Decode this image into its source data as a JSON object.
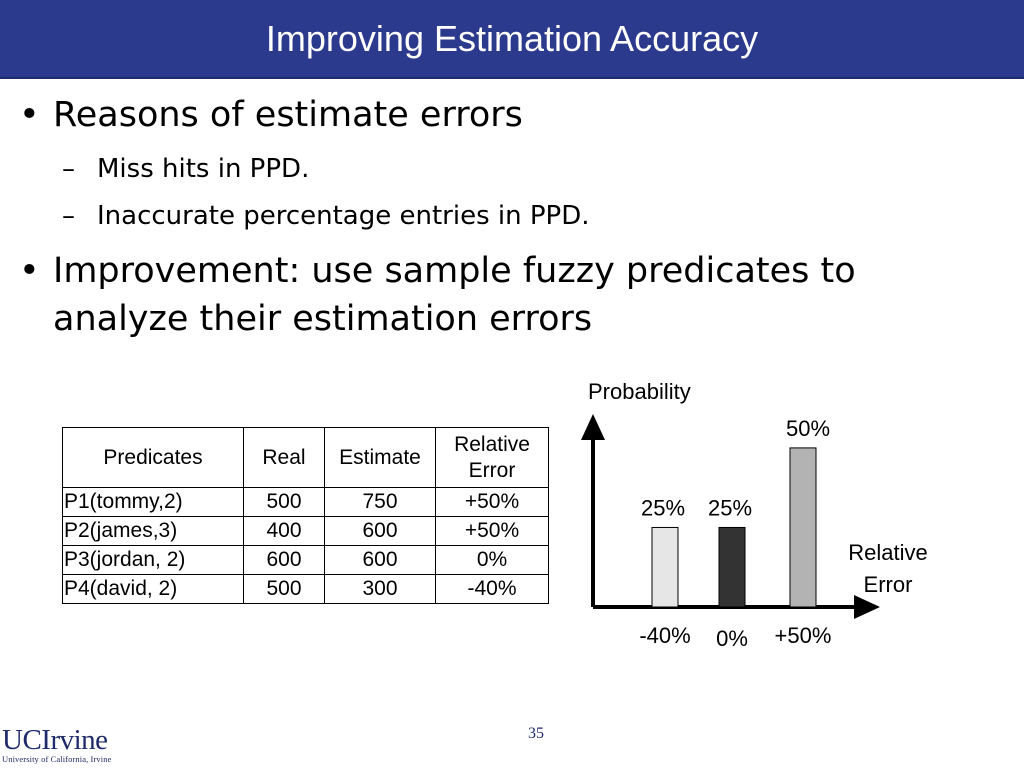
{
  "slide": {
    "title": "Improving Estimation Accuracy",
    "bullets": [
      {
        "text": "Reasons of estimate errors",
        "subs": [
          "Miss hits in PPD.",
          "Inaccurate percentage entries in PPD."
        ]
      },
      {
        "line1": "Improvement: use sample fuzzy predicates to",
        "line2": "analyze their estimation errors"
      }
    ],
    "bullet_glyph": "•",
    "dash_glyph": "–",
    "page_number": "35",
    "logo": {
      "word": "UCIrvine",
      "sub": "University of California, Irvine"
    }
  },
  "table": {
    "headers": [
      "Predicates",
      "Real",
      "Estimate",
      "Relative",
      "Error"
    ],
    "rows": [
      [
        "P1(tommy,2)",
        "500",
        "750",
        "+50%"
      ],
      [
        "P2(james,3)",
        "400",
        "600",
        "+50%"
      ],
      [
        "P3(jordan, 2)",
        "600",
        "600",
        "0%"
      ],
      [
        "P4(david, 2)",
        "500",
        "300",
        "-40%"
      ]
    ]
  },
  "chart_data": {
    "type": "bar",
    "ylabel": "Probability",
    "xlabel_line1": "Relative",
    "xlabel_line2": "Error",
    "categories": [
      "-40%",
      "0%",
      "+50%"
    ],
    "values": [
      25,
      25,
      50
    ],
    "value_labels": [
      "25%",
      "25%",
      "50%"
    ],
    "ylim": [
      0,
      55
    ],
    "bar_colors": [
      "#e6e6e6",
      "#333333",
      "#b3b3b3"
    ]
  }
}
